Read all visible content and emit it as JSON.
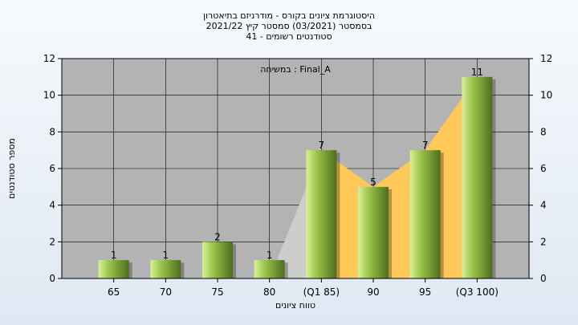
{
  "chart_data": {
    "type": "bar",
    "title_lines": [
      "היסטוגרמת ציונים בקורס - מודרניזם בתיאטרון",
      "בסמסטר  (03/2021)  סמסטר קיץ  2021/22",
      "סטודנטים רשומים - 41"
    ],
    "subtitle": "במשיחה : Final_A",
    "xlabel": "טווח ציונים",
    "ylabel": "מספר סטודנטים",
    "categories": [
      "65",
      "70",
      "75",
      "80",
      "(Q1 85)",
      "90",
      "95",
      "(Q3 100)"
    ],
    "values": [
      1,
      1,
      2,
      1,
      7,
      5,
      7,
      11
    ],
    "value_labels": [
      "1",
      "1",
      "2",
      "1",
      "7",
      "5",
      "7",
      "11"
    ],
    "ylim": [
      0,
      12
    ],
    "yticks": [
      0,
      2,
      4,
      6,
      8,
      10,
      12
    ],
    "grid": true,
    "area_overlay": {
      "gray": {
        "from_index": 3,
        "to_index": 4
      },
      "yellow": {
        "from_index": 4,
        "to_index": 7
      }
    },
    "colors": {
      "plot_bg": "#b3b3b3",
      "gray_area": "#cdcdcd",
      "yellow_area": "#ffc95a",
      "bar_light": "#d8f09a",
      "bar_mid": "#9bc44a",
      "bar_dark": "#4e6e1c"
    }
  }
}
